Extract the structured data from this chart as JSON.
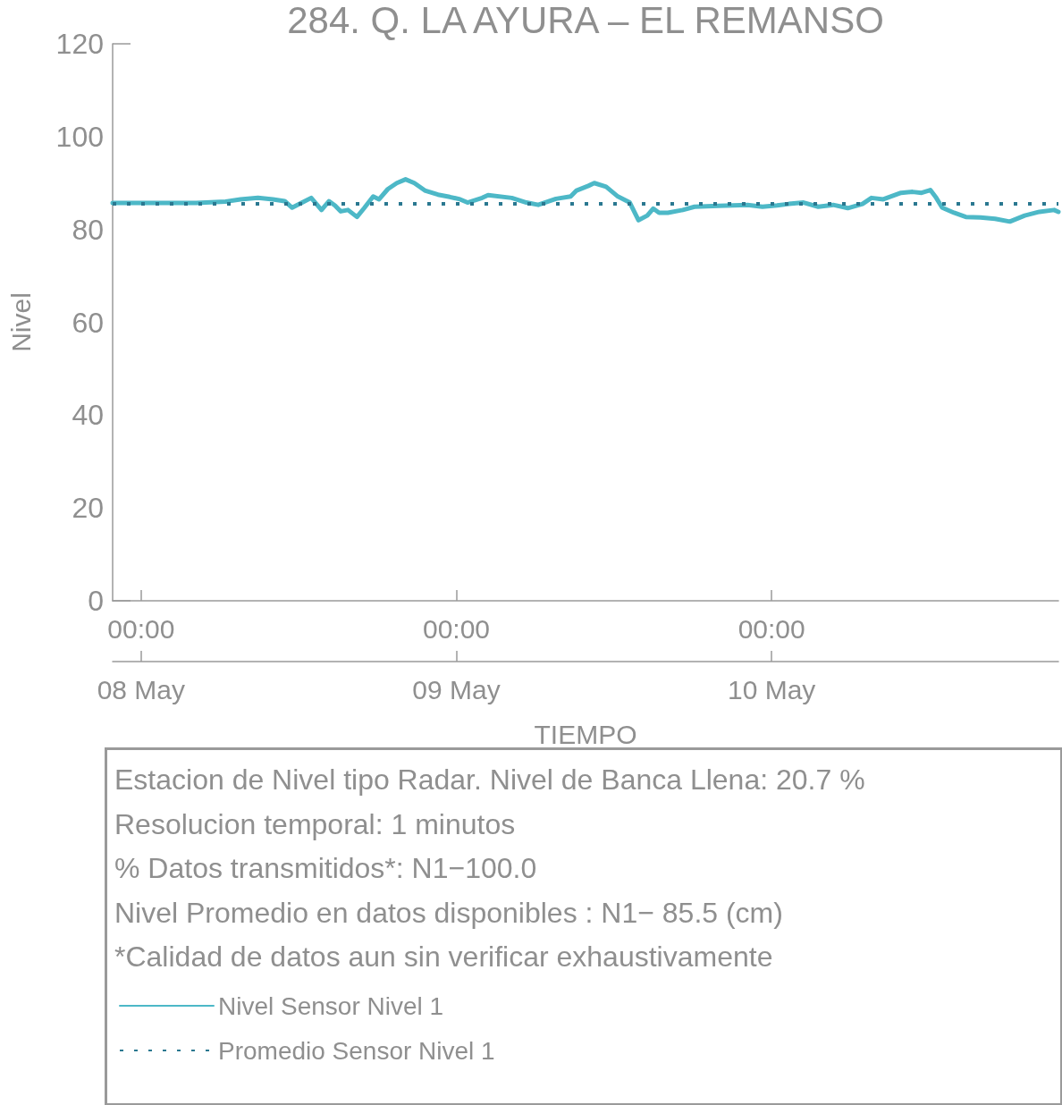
{
  "chart_data": {
    "type": "line",
    "title": "284. Q. LA AYURA – EL REMANSO",
    "xlabel": "TIEMPO",
    "ylabel": "Nivel",
    "annotations": [
      "Estacion de Nivel tipo Radar. Nivel de Banca Llena: 20.7 %",
      "Resolucion temporal: 1 minutos",
      "% Datos transmitidos*: N1−100.0",
      "Nivel Promedio en datos disponibles : N1− 85.5 (cm)",
      "*Calidad de datos aun sin verificar exhaustivamente"
    ],
    "xlim": [
      "--05-07T21:50",
      "--05-10T21:50"
    ],
    "xticks": [
      {
        "value": "--05-08T00:00",
        "label": "00:00"
      },
      {
        "value": "--05-09T00:00",
        "label": "00:00"
      },
      {
        "value": "--05-10T00:00",
        "label": "00:00"
      }
    ],
    "x2lim": [
      "--05-07T21:50",
      "--05-10T21:50"
    ],
    "x2ticks": [
      {
        "value": "--05-08T00:00",
        "label": "08 May"
      },
      {
        "value": "--05-09T00:00",
        "label": "09 May"
      },
      {
        "value": "--05-10T00:00",
        "label": "10 May"
      }
    ],
    "ylim": [
      0,
      120
    ],
    "yticks": [
      0,
      20,
      40,
      60,
      80,
      100,
      120
    ],
    "legend": "bottom",
    "marker": "none",
    "series": [
      {
        "name": "Nivel Sensor Nivel 1",
        "color": "#4db8c7",
        "line_style": "solid",
        "x": [
          "--05-07T21:50",
          "--05-07T23:43",
          "--05-08T04:12",
          "--05-08T06:26",
          "--05-08T07:34",
          "--05-08T08:54",
          "--05-08T10:02",
          "--05-08T10:56",
          "--05-08T11:30",
          "--05-08T12:16",
          "--05-08T12:57",
          "--05-08T13:44",
          "--05-08T14:18",
          "--05-08T14:45",
          "--05-08T15:12",
          "--05-08T15:45",
          "--05-08T16:26",
          "--05-08T16:59",
          "--05-08T17:40",
          "--05-08T18:07",
          "--05-08T18:47",
          "--05-08T19:28",
          "--05-08T20:08",
          "--05-08T20:48",
          "--05-08T21:36",
          "--05-08T22:36",
          "--05-08T23:30",
          "--05-09T00:17",
          "--05-09T00:51",
          "--05-09T01:58",
          "--05-09T02:25",
          "--05-09T04:13",
          "--05-09T05:20",
          "--05-09T06:14",
          "--05-09T07:35",
          "--05-09T08:42",
          "--05-09T09:09",
          "--05-09T10:03",
          "--05-09T10:30",
          "--05-09T11:24",
          "--05-09T12:18",
          "--05-09T13:12",
          "--05-09T13:52",
          "--05-09T14:32",
          "--05-09T14:59",
          "--05-09T15:26",
          "--05-09T16:06",
          "--05-09T17:14",
          "--05-09T18:08",
          "--05-09T19:56",
          "--05-09T22:10",
          "--05-09T23:18",
          "--05-10T00:25",
          "--05-10T01:19",
          "--05-10T02:26",
          "--05-10T03:33",
          "--05-10T04:41",
          "--05-10T05:48",
          "--05-10T06:55",
          "--05-10T07:36",
          "--05-10T08:30",
          "--05-10T09:51",
          "--05-10T10:44",
          "--05-10T11:25",
          "--05-10T12:05",
          "--05-10T12:32",
          "--05-10T12:59",
          "--05-10T13:53",
          "--05-10T14:47",
          "--05-10T15:54",
          "--05-10T17:01",
          "--05-10T18:08",
          "--05-10T19:16",
          "--05-10T20:23",
          "--05-10T21:30",
          "--05-10T21:50"
        ],
        "values": [
          85.7,
          85.7,
          85.7,
          86.0,
          86.5,
          86.8,
          86.5,
          86.1,
          84.7,
          85.8,
          86.8,
          84.2,
          86.1,
          85.2,
          83.9,
          84.2,
          82.7,
          84.6,
          87.1,
          86.5,
          88.7,
          90.0,
          90.8,
          90.0,
          88.4,
          87.5,
          87.0,
          86.5,
          85.8,
          86.8,
          87.4,
          86.8,
          85.8,
          85.3,
          86.6,
          87.1,
          88.4,
          89.4,
          90.0,
          89.2,
          87.1,
          85.8,
          82.0,
          83.0,
          84.5,
          83.6,
          83.6,
          84.2,
          84.9,
          85.1,
          85.3,
          84.9,
          85.2,
          85.5,
          85.8,
          84.9,
          85.3,
          84.6,
          85.5,
          86.8,
          86.5,
          87.9,
          88.1,
          87.9,
          88.5,
          86.8,
          84.7,
          83.6,
          82.7,
          82.6,
          82.3,
          81.7,
          83.0,
          83.8,
          84.2,
          83.8
        ]
      },
      {
        "name": "Promedio Sensor Nivel 1",
        "color": "#2a7890",
        "line_style": "dotted",
        "x": [
          "--05-07T21:50",
          "--05-10T21:50"
        ],
        "values": [
          85.5,
          85.5
        ]
      }
    ]
  }
}
